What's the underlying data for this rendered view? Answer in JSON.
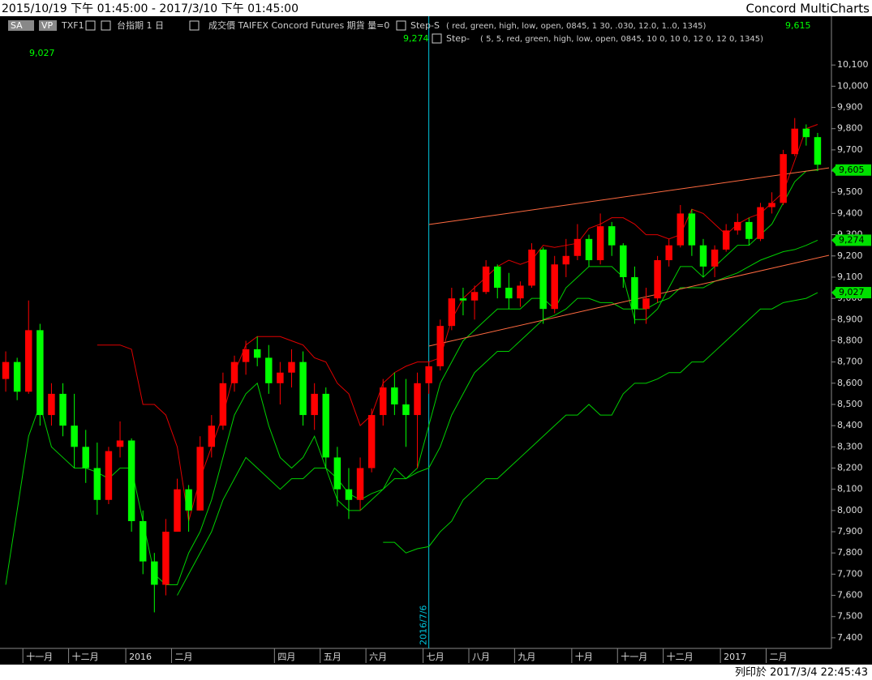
{
  "header": {
    "title": "2015/10/19 下午 01:45:00 - 2017/3/10 下午 01:45:00",
    "app": "Concord MultiCharts"
  },
  "footer": {
    "print_time": "列印於 2017/3/4 22:45:43"
  },
  "toolbar": {
    "sa": "SA",
    "vp": "VP",
    "symbol": "TXF1",
    "period": "台指期 1 日",
    "source": "成交價 TAIFEX Concord Futures 期貨 量=0",
    "study1": "Step-S",
    "params1": "(      red, green, high, low, open, 0845, 1 30, .030, 12.0, 1..0, 1345)",
    "value1": "9,615",
    "study2": "Step-",
    "params2": "( 5,   5, red, green, high, low, open, 0845, 10 0, 10 0, 12 0, 12 0, 1345)",
    "value2": "9,274",
    "value3": "9,027"
  },
  "chart_data": {
    "type": "candlestick",
    "categories": [
      null,
      null,
      "十一月",
      null,
      null,
      null,
      "十二月",
      null,
      null,
      null,
      null,
      "2016",
      null,
      null,
      null,
      "二月",
      null,
      null,
      null,
      null,
      null,
      null,
      null,
      null,
      "四月",
      null,
      null,
      null,
      "五月",
      null,
      null,
      null,
      "六月",
      null,
      null,
      null,
      null,
      "七月",
      null,
      null,
      null,
      "八月",
      null,
      null,
      null,
      "九月",
      null,
      null,
      null,
      null,
      "十月",
      null,
      null,
      null,
      "十一月",
      null,
      null,
      null,
      "十二月",
      null,
      null,
      null,
      null,
      "2017",
      null,
      null,
      null,
      "二月",
      null,
      null,
      null,
      null
    ],
    "open": [
      8620,
      8700,
      8560,
      8850,
      8450,
      8550,
      8400,
      8300,
      8200,
      8050,
      8300,
      8330,
      7950,
      7760,
      7650,
      7900,
      8100,
      8000,
      8300,
      8400,
      8600,
      8700,
      8760,
      8720,
      8600,
      8650,
      8700,
      8450,
      8550,
      8250,
      8100,
      8050,
      8200,
      8450,
      8580,
      8500,
      8450,
      8600,
      8680,
      8870,
      9000,
      8990,
      9030,
      9150,
      9050,
      9000,
      9060,
      9230,
      8950,
      9160,
      9200,
      9280,
      9180,
      9340,
      9250,
      9100,
      8950,
      9000,
      9180,
      9250,
      9400,
      9250,
      9150,
      9230,
      9320,
      9360,
      9280,
      9430,
      9450,
      9680,
      9800,
      9760
    ],
    "high": [
      8750,
      8720,
      8990,
      8880,
      8600,
      8600,
      8550,
      8380,
      8320,
      8300,
      8420,
      8340,
      8000,
      7800,
      7960,
      8150,
      8120,
      8350,
      8450,
      8650,
      8730,
      8800,
      8820,
      8780,
      8700,
      8760,
      8750,
      8600,
      8580,
      8300,
      8200,
      8250,
      8480,
      8620,
      8650,
      8620,
      8650,
      8700,
      8900,
      9050,
      9050,
      9060,
      9180,
      9160,
      9120,
      9080,
      9260,
      9240,
      9200,
      9280,
      9350,
      9300,
      9400,
      9360,
      9260,
      9150,
      9050,
      9200,
      9280,
      9440,
      9420,
      9280,
      9250,
      9350,
      9400,
      9380,
      9450,
      9500,
      9700,
      9850,
      9820,
      9780
    ],
    "low": [
      8560,
      8520,
      8550,
      8400,
      8400,
      8350,
      8200,
      8130,
      7980,
      8030,
      8250,
      7900,
      7700,
      7520,
      7600,
      7900,
      7900,
      8000,
      8250,
      8380,
      8560,
      8640,
      8680,
      8550,
      8500,
      8580,
      8400,
      8380,
      8200,
      8020,
      7960,
      8000,
      8180,
      8400,
      8450,
      8300,
      8200,
      8550,
      8660,
      8850,
      8920,
      8900,
      9020,
      9000,
      8950,
      8960,
      9050,
      8880,
      8930,
      9100,
      9180,
      9150,
      9160,
      9200,
      9050,
      8880,
      8880,
      8980,
      9150,
      9240,
      9200,
      9100,
      9100,
      9220,
      9300,
      9250,
      9270,
      9400,
      9440,
      9670,
      9720,
      9600
    ],
    "close": [
      8700,
      8560,
      8850,
      8450,
      8550,
      8400,
      8300,
      8200,
      8050,
      8280,
      8330,
      7950,
      7760,
      7650,
      7900,
      8100,
      8000,
      8300,
      8400,
      8600,
      8700,
      8760,
      8720,
      8600,
      8650,
      8700,
      8450,
      8550,
      8250,
      8100,
      8050,
      8200,
      8450,
      8580,
      8500,
      8450,
      8600,
      8680,
      8870,
      9000,
      8990,
      9030,
      9150,
      9050,
      9000,
      9060,
      9230,
      8950,
      9160,
      9200,
      9280,
      9180,
      9340,
      9250,
      9100,
      8950,
      9000,
      9180,
      9250,
      9400,
      9250,
      9150,
      9230,
      9320,
      9360,
      9280,
      9430,
      9450,
      9680,
      9800,
      9760,
      9630
    ],
    "up_color": "#ff0000",
    "down_color": "#00ff00",
    "series": [
      {
        "color": "#e00000",
        "values": [
          null,
          null,
          null,
          null,
          null,
          null,
          null,
          null,
          8780,
          8780,
          8780,
          8760,
          8500,
          8500,
          8450,
          8300,
          7950,
          8150,
          8300,
          8450,
          8650,
          8780,
          8820,
          8820,
          8820,
          8800,
          8780,
          8720,
          8700,
          8600,
          8550,
          8400,
          8450,
          8600,
          8650,
          8680,
          8700,
          8700,
          8720,
          8900,
          9000,
          9050,
          9100,
          9150,
          9180,
          9160,
          9180,
          9250,
          9240,
          9250,
          9260,
          9330,
          9350,
          9380,
          9380,
          9350,
          9300,
          9300,
          9280,
          9300,
          9420,
          9400,
          9350,
          9300,
          9350,
          9380,
          9400,
          9450,
          9500,
          9650,
          9800,
          9820
        ]
      },
      {
        "color": "#00d000",
        "values": [
          7650,
          8000,
          8350,
          8500,
          8300,
          8250,
          8200,
          8200,
          8180,
          8150,
          8200,
          8200,
          7950,
          7700,
          7650,
          7650,
          7800,
          7900,
          8050,
          8250,
          8450,
          8550,
          8600,
          8400,
          8250,
          8200,
          8250,
          8350,
          8200,
          8050,
          8000,
          8000,
          8050,
          8100,
          8200,
          8150,
          8200,
          8400,
          8600,
          8700,
          8800,
          8850,
          8900,
          8950,
          8950,
          8950,
          9000,
          9000,
          8950,
          9050,
          9100,
          9150,
          9150,
          9150,
          9100,
          8900,
          8900,
          8950,
          9050,
          9150,
          9150,
          9100,
          9150,
          9200,
          9250,
          9250,
          9300,
          9350,
          9450,
          9550,
          9600,
          9605
        ]
      },
      {
        "color": "#00d000",
        "values": [
          null,
          null,
          null,
          null,
          null,
          null,
          null,
          null,
          null,
          null,
          null,
          null,
          null,
          null,
          null,
          7600,
          7700,
          7800,
          7900,
          8050,
          8150,
          8250,
          8200,
          8150,
          8100,
          8150,
          8150,
          8200,
          8200,
          8150,
          8080,
          8050,
          8080,
          8100,
          8150,
          8150,
          8180,
          8200,
          8300,
          8450,
          8550,
          8650,
          8700,
          8750,
          8750,
          8800,
          8850,
          8900,
          8920,
          8950,
          9000,
          9000,
          8980,
          8980,
          8950,
          8950,
          8950,
          8980,
          9000,
          9050,
          9050,
          9050,
          9080,
          9100,
          9120,
          9150,
          9180,
          9200,
          9220,
          9230,
          9250,
          9274
        ]
      },
      {
        "color": "#00d000",
        "values": [
          null,
          null,
          null,
          null,
          null,
          null,
          null,
          null,
          null,
          null,
          null,
          null,
          null,
          null,
          null,
          null,
          null,
          null,
          null,
          null,
          null,
          null,
          null,
          null,
          null,
          null,
          null,
          null,
          null,
          null,
          null,
          null,
          null,
          7850,
          7850,
          7800,
          7820,
          7830,
          7900,
          7950,
          8050,
          8100,
          8150,
          8150,
          8200,
          8250,
          8300,
          8350,
          8400,
          8450,
          8450,
          8500,
          8450,
          8450,
          8550,
          8600,
          8600,
          8620,
          8650,
          8650,
          8700,
          8700,
          8750,
          8800,
          8850,
          8900,
          8950,
          8950,
          8980,
          8990,
          9000,
          9027
        ]
      }
    ],
    "trendlines": [
      {
        "color": "#ff6a40",
        "x": [
          37,
          72
        ],
        "values": [
          9348,
          9615
        ]
      },
      {
        "color": "#ff6a40",
        "x": [
          37,
          72
        ],
        "values": [
          8775,
          9203
        ]
      }
    ],
    "vline": {
      "x": 37,
      "label": "2016/7/6",
      "color": "#00c8e0"
    },
    "price_labels": [
      {
        "value": 9605,
        "label": "9,605"
      },
      {
        "value": 9274,
        "label": "9,274"
      },
      {
        "value": 9027,
        "label": "9,027"
      }
    ],
    "ylim": [
      7350,
      10330
    ],
    "yticks": [
      {
        "value": 7400,
        "label": "7,400"
      },
      {
        "value": 7500,
        "label": "7,500"
      },
      {
        "value": 7600,
        "label": "7,600"
      },
      {
        "value": 7700,
        "label": "7,700"
      },
      {
        "value": 7800,
        "label": "7,800"
      },
      {
        "value": 7900,
        "label": "7,900"
      },
      {
        "value": 8000,
        "label": "8,000"
      },
      {
        "value": 8100,
        "label": "8,100"
      },
      {
        "value": 8200,
        "label": "8,200"
      },
      {
        "value": 8300,
        "label": "8,300"
      },
      {
        "value": 8400,
        "label": "8,400"
      },
      {
        "value": 8500,
        "label": "8,500"
      },
      {
        "value": 8600,
        "label": "8,600"
      },
      {
        "value": 8700,
        "label": "8,700"
      },
      {
        "value": 8800,
        "label": "8,800"
      },
      {
        "value": 8900,
        "label": "8,900"
      },
      {
        "value": 9000,
        "label": "9,000"
      },
      {
        "value": 9100,
        "label": "9,100"
      },
      {
        "value": 9200,
        "label": "9,200"
      },
      {
        "value": 9300,
        "label": "9,300"
      },
      {
        "value": 9400,
        "label": "9,400"
      },
      {
        "value": 9500,
        "label": "9,500"
      },
      {
        "value": 9600,
        "label": "9,600"
      },
      {
        "value": 9700,
        "label": "9,700"
      },
      {
        "value": 9800,
        "label": "9,800"
      },
      {
        "value": 9900,
        "label": "9,900"
      },
      {
        "value": 10000,
        "label": "10,000"
      },
      {
        "value": 10100,
        "label": "10,100"
      }
    ]
  }
}
